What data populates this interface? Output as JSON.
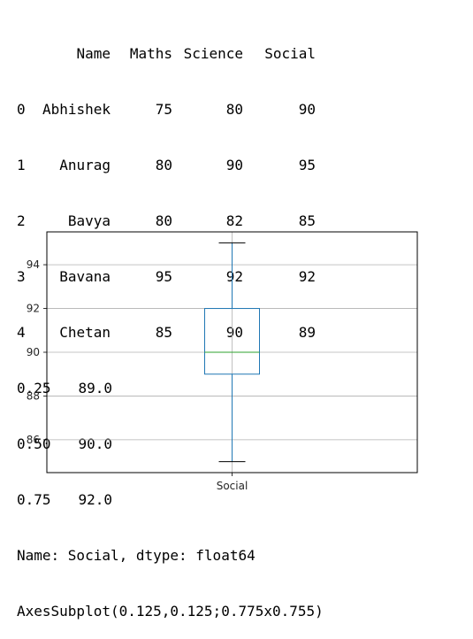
{
  "table": {
    "columns": [
      "Name",
      "Maths",
      "Science",
      "Social"
    ],
    "rows": [
      {
        "index": "0",
        "Name": "Abhishek",
        "Maths": "75",
        "Science": "80",
        "Social": "90"
      },
      {
        "index": "1",
        "Name": "Anurag",
        "Maths": "80",
        "Science": "90",
        "Social": "95"
      },
      {
        "index": "2",
        "Name": "Bavya",
        "Maths": "80",
        "Science": "82",
        "Social": "85"
      },
      {
        "index": "3",
        "Name": "Bavana",
        "Maths": "95",
        "Science": "92",
        "Social": "92"
      },
      {
        "index": "4",
        "Name": "Chetan",
        "Maths": "85",
        "Science": "90",
        "Social": "89"
      }
    ]
  },
  "quantiles": [
    {
      "q": "0.25",
      "value": "89.0"
    },
    {
      "q": "0.50",
      "value": "90.0"
    },
    {
      "q": "0.75",
      "value": "92.0"
    }
  ],
  "series_info": "Name: Social, dtype: float64",
  "axes_repr": "AxesSubplot(0.125,0.125;0.775x0.755)",
  "chart_data": {
    "type": "box",
    "categories": [
      "Social"
    ],
    "boxes": [
      {
        "label": "Social",
        "whisker_low": 85,
        "q1": 89,
        "median": 90,
        "q3": 92,
        "whisker_high": 95
      }
    ],
    "ylim": [
      84.5,
      95.5
    ],
    "yticks": [
      86,
      88,
      90,
      92,
      94
    ],
    "grid": true,
    "colors": {
      "box": "#1f77b4",
      "median": "#2ca02c",
      "whisker": "#1f77b4",
      "cap": "#000000",
      "grid": "#b0b0b0",
      "axes": "#000000"
    }
  }
}
